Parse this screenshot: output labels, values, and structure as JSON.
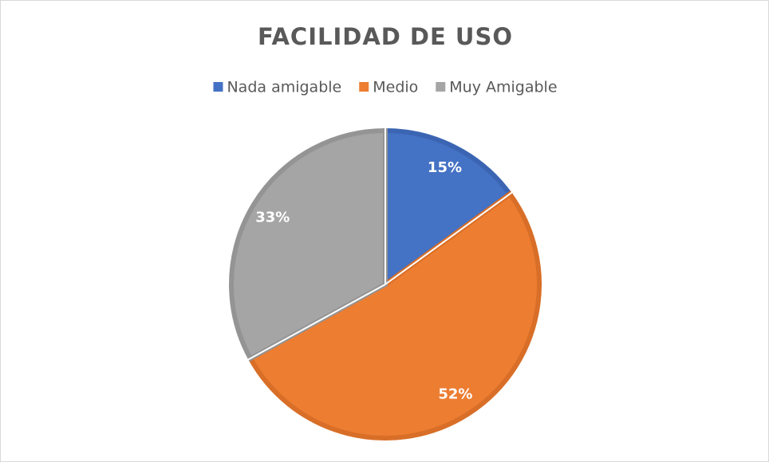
{
  "chart_data": {
    "type": "pie",
    "title": "FACILIDAD DE USO",
    "categories": [
      "Nada amigable",
      "Medio",
      "Muy Amigable"
    ],
    "values": [
      15,
      52,
      33
    ],
    "value_labels": [
      "15%",
      "52%",
      "33%"
    ],
    "colors": [
      "#4472c4",
      "#ed7d31",
      "#a5a5a5"
    ],
    "border_colors": [
      "#3b65b3",
      "#d86e27",
      "#949494"
    ],
    "legend": "top"
  }
}
